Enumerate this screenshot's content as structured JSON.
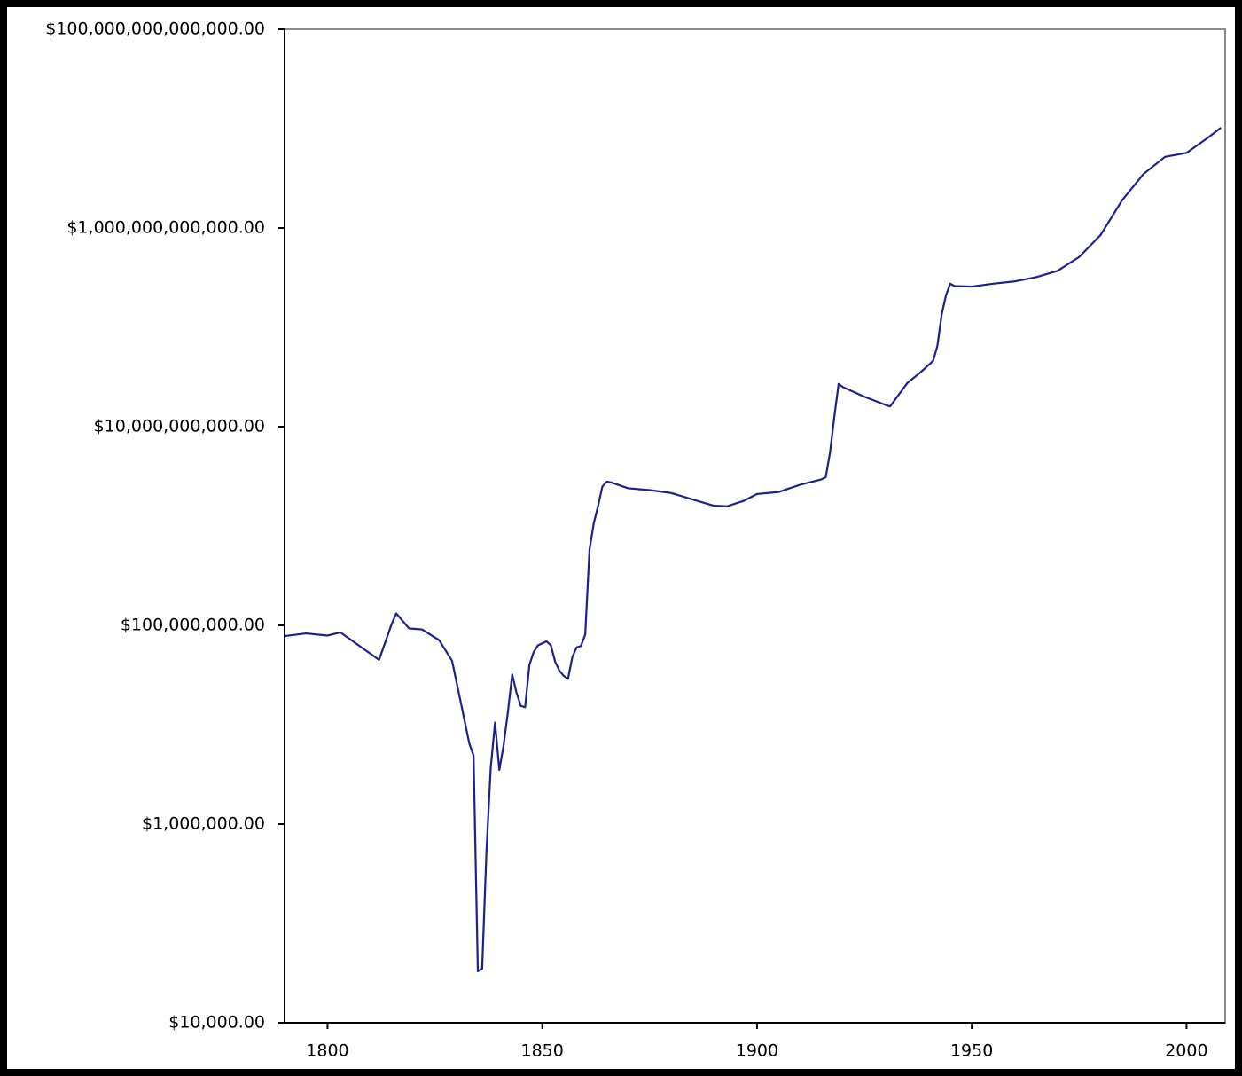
{
  "chart_data": {
    "type": "line",
    "yscale": "log",
    "color": "#1f1f8c",
    "xlim": [
      1790,
      2009
    ],
    "ylim": [
      10000,
      100000000000000
    ],
    "xticks": [
      1800,
      1850,
      1900,
      1950,
      2000
    ],
    "yticks": [
      {
        "value": 10000,
        "label": "$10,000.00"
      },
      {
        "value": 1000000,
        "label": "$1,000,000.00"
      },
      {
        "value": 100000000,
        "label": "$100,000,000.00"
      },
      {
        "value": 10000000000,
        "label": "$10,000,000,000.00"
      },
      {
        "value": 1000000000000,
        "label": "$1,000,000,000,000.00"
      },
      {
        "value": 100000000000000,
        "label": "$100,000,000,000,000.00"
      }
    ],
    "x": [
      1790,
      1795,
      1800,
      1803,
      1812,
      1815,
      1816,
      1819,
      1822,
      1826,
      1829,
      1831,
      1833,
      1834,
      1835,
      1836,
      1837,
      1838,
      1839,
      1840,
      1841,
      1842,
      1843,
      1844,
      1845,
      1846,
      1847,
      1848,
      1849,
      1850,
      1851,
      1852,
      1853,
      1854,
      1855,
      1856,
      1857,
      1858,
      1859,
      1860,
      1861,
      1862,
      1863,
      1864,
      1865,
      1866,
      1870,
      1875,
      1880,
      1885,
      1890,
      1893,
      1897,
      1900,
      1905,
      1910,
      1915,
      1916,
      1917,
      1918,
      1919,
      1920,
      1925,
      1930,
      1931,
      1933,
      1935,
      1938,
      1941,
      1942,
      1943,
      1944,
      1945,
      1946,
      1950,
      1955,
      1960,
      1965,
      1970,
      1975,
      1980,
      1985,
      1990,
      1995,
      2000,
      2005,
      2008
    ],
    "values": [
      78000000,
      83000000,
      79000000,
      85000000,
      45000000,
      105000000,
      132000000,
      93000000,
      91000000,
      71000000,
      44000000,
      17000000,
      6500000,
      4900000,
      33000,
      35000,
      525000,
      3700000,
      10500000,
      3500000,
      6200000,
      13500000,
      32000000,
      21000000,
      15500000,
      15000000,
      40000000,
      54000000,
      63000000,
      66000000,
      69000000,
      63000000,
      43000000,
      35000000,
      31000000,
      29000000,
      48000000,
      60000000,
      62000000,
      81000000,
      580000000,
      1070000000,
      1600000000,
      2500000000,
      2800000000,
      2750000000,
      2400000000,
      2300000000,
      2150000000,
      1850000000,
      1600000000,
      1580000000,
      1800000000,
      2100000000,
      2200000000,
      2600000000,
      2950000000,
      3100000000,
      5500000000,
      12600000000,
      27000000000,
      25000000000,
      20000000000,
      16500000000,
      16000000000,
      21000000000,
      27500000000,
      35000000000,
      46000000000,
      65000000000,
      135000000000,
      210000000000,
      275000000000,
      260000000000,
      257000000000,
      275000000000,
      290000000000,
      320000000000,
      370000000000,
      510000000000,
      850000000000,
      1900000000000,
      3500000000000,
      5200000000000,
      5700000000000,
      8100000000000,
      10200000000000
    ]
  }
}
